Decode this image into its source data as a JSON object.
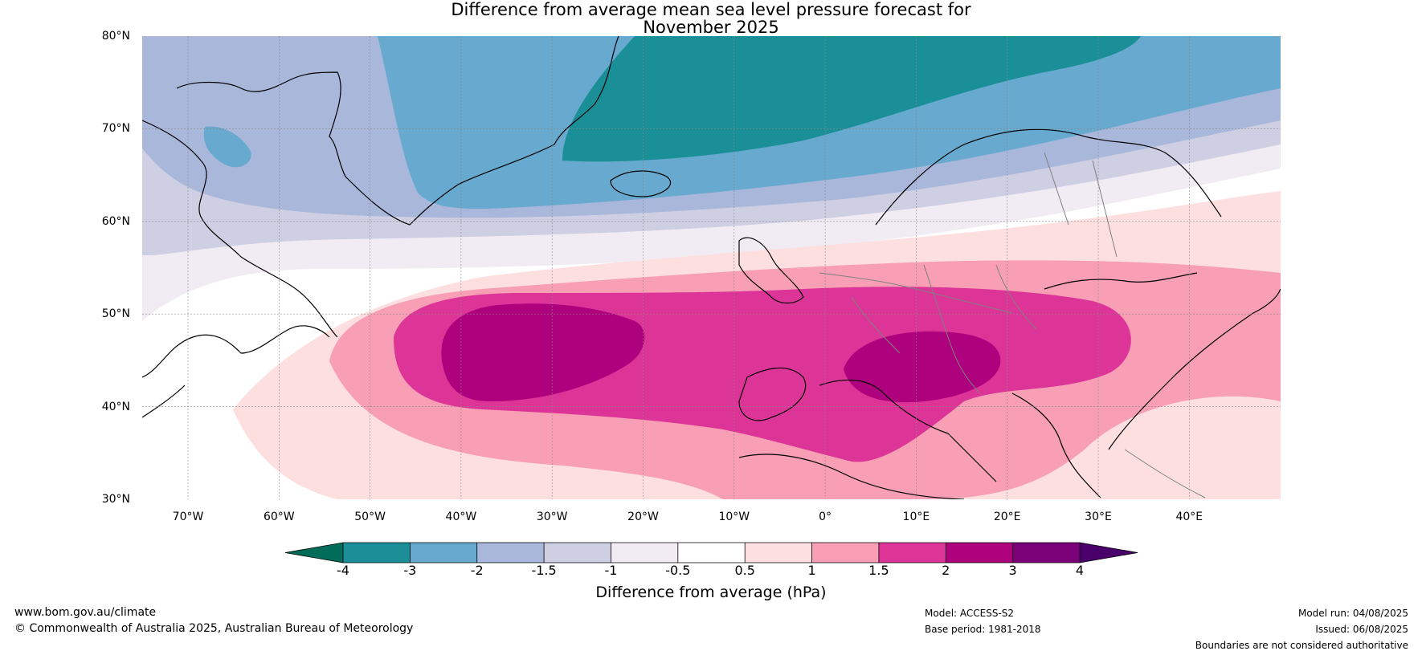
{
  "title": {
    "line1": "Difference from average mean sea level pressure forecast for",
    "line2": "November 2025"
  },
  "map": {
    "lat_labels": [
      "80°N",
      "70°N",
      "60°N",
      "50°N",
      "40°N",
      "30°N"
    ],
    "lon_labels": [
      "70°W",
      "60°W",
      "50°W",
      "40°W",
      "30°W",
      "20°W",
      "10°W",
      "0°",
      "10°E",
      "20°E",
      "30°E",
      "40°E"
    ],
    "coast_color": "#000000",
    "border_color": "#808080"
  },
  "colorbar": {
    "label": "Difference from average (hPa)",
    "ticks": [
      "-4",
      "-3",
      "-2",
      "-1.5",
      "-1",
      "-0.5",
      "0.5",
      "1",
      "1.5",
      "2",
      "3",
      "4"
    ],
    "colors": [
      "#1a8f97",
      "#67a9cf",
      "#a8b7da",
      "#cfcfe3",
      "#f1ecf4",
      "#ffffff",
      "#fddfe0",
      "#f89fb6",
      "#dd3497",
      "#ae017e",
      "#7a0177"
    ],
    "under_color": "#016c59",
    "over_color": "#49006a"
  },
  "footer": {
    "website": "www.bom.gov.au/climate",
    "copyright": "© Commonwealth of Australia 2025, Australian Bureau of Meteorology",
    "model": "Model: ACCESS-S2",
    "base_period": "Base period: 1981-2018",
    "model_run": "Model run: 04/08/2025",
    "issued": "Issued: 06/08/2025",
    "disclaimer": "Boundaries are not considered authoritative"
  }
}
